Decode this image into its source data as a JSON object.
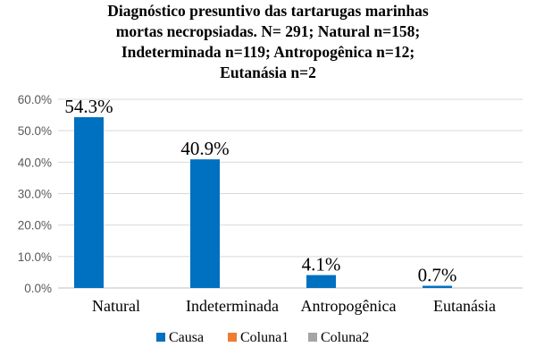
{
  "chart_data": {
    "type": "bar",
    "title_lines": [
      "Diagnóstico presuntivo das tartarugas marinhas",
      "mortas necropsiadas. N= 291; Natural n=158;",
      "Indeterminada n=119; Antropogênica n=12;",
      "Eutanásia n=2"
    ],
    "categories": [
      "Natural",
      "Indeterminada",
      "Antropogênica",
      "Eutanásia"
    ],
    "series": [
      {
        "name": "Causa",
        "color": "#0070c0",
        "values": [
          54.3,
          40.9,
          4.1,
          0.7
        ],
        "data_labels": [
          "54.3%",
          "40.9%",
          "4.1%",
          "0.7%"
        ]
      },
      {
        "name": "Coluna1",
        "color": "#ed7d31",
        "values": [
          null,
          null,
          null,
          null
        ]
      },
      {
        "name": "Coluna2",
        "color": "#a5a5a5",
        "values": [
          null,
          null,
          null,
          null
        ]
      }
    ],
    "yticks": [
      "0.0%",
      "10.0%",
      "20.0%",
      "30.0%",
      "40.0%",
      "50.0%",
      "60.0%"
    ],
    "ylim": [
      0,
      60
    ],
    "xlabel": "",
    "ylabel": "",
    "grid": true,
    "legend_position": "bottom"
  }
}
